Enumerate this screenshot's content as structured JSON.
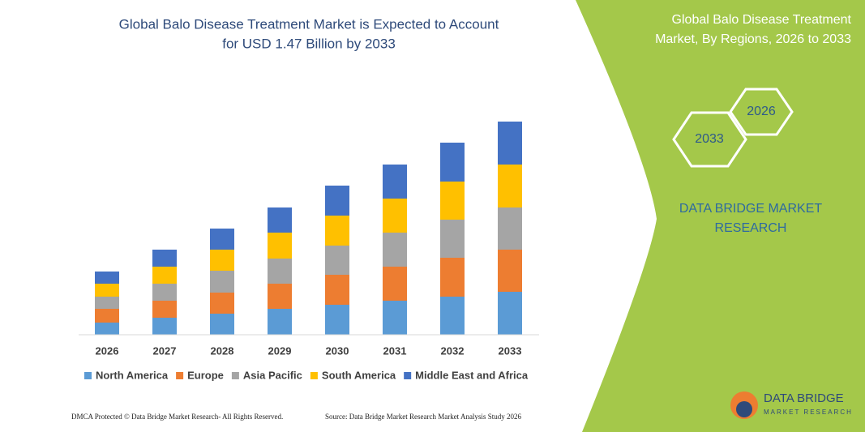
{
  "chart_data": {
    "type": "stacked-bar",
    "title": [
      "Global Balo Disease Treatment Market is Expected to Account",
      "for USD 1.47 Billion by 2033"
    ],
    "categories": [
      "2026",
      "2027",
      "2028",
      "2029",
      "2030",
      "2031",
      "2032",
      "2033"
    ],
    "series": [
      {
        "name": "North America",
        "color": "#5b9bd5",
        "values": [
          15,
          21,
          26,
          32,
          37,
          42,
          47,
          53
        ]
      },
      {
        "name": "Europe",
        "color": "#ed7d31",
        "values": [
          17,
          21,
          26,
          31,
          37,
          42,
          48,
          52
        ]
      },
      {
        "name": "Asia Pacific",
        "color": "#a5a5a5",
        "values": [
          15,
          21,
          27,
          31,
          36,
          42,
          47,
          52
        ]
      },
      {
        "name": "South America",
        "color": "#ffc000",
        "values": [
          16,
          21,
          26,
          32,
          37,
          42,
          47,
          53
        ]
      },
      {
        "name": "Middle East and Africa",
        "color": "#4472c4",
        "values": [
          15,
          21,
          26,
          31,
          37,
          42,
          48,
          53
        ]
      }
    ]
  },
  "panel": {
    "title": [
      "Global Balo Disease Treatment",
      "Market, By Regions, 2026 to 2033"
    ],
    "hexagons": [
      "2026",
      "2033"
    ],
    "brand": [
      "DATA BRIDGE MARKET",
      "RESEARCH"
    ]
  },
  "footer": {
    "left": "DMCA Protected © Data Bridge Market Research-  All Rights Reserved.",
    "right": "Source: Data Bridge Market Research  Market Analysis Study 2026"
  },
  "logo": {
    "name": "DATA BRIDGE",
    "tagline": "MARKET RESEARCH"
  }
}
